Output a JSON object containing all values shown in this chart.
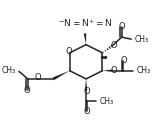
{
  "bg": "#ffffff",
  "lc": "#222222",
  "lw": 1.1,
  "fs": 6.0,
  "figsize": [
    1.54,
    1.4
  ],
  "dpi": 100,
  "xlim": [
    0,
    10.5
  ],
  "ylim": [
    1.5,
    9.8
  ]
}
